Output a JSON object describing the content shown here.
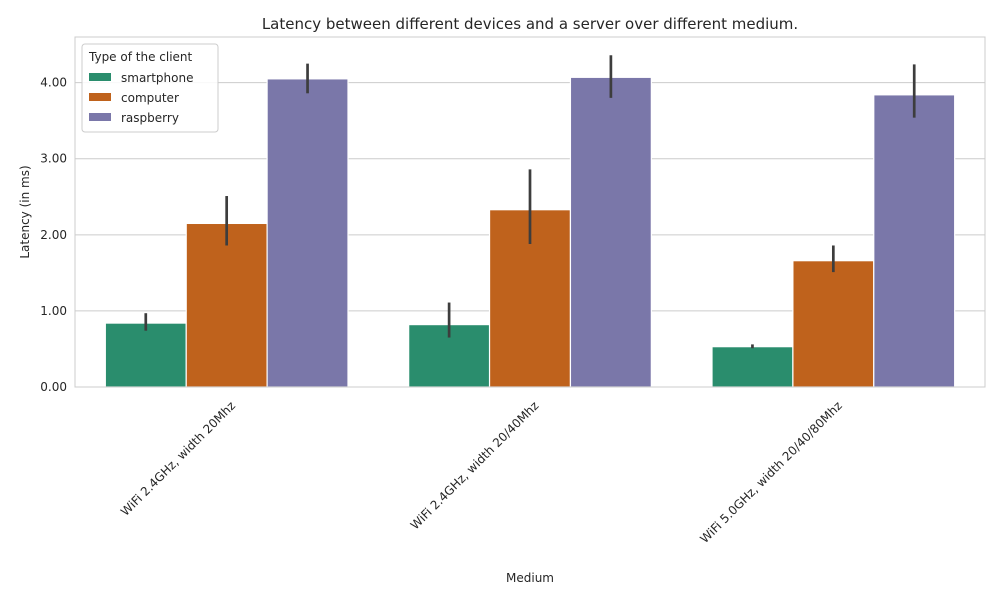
{
  "chart_data": {
    "type": "bar",
    "title": "Latency between different devices and a server over different medium.",
    "xlabel": "Medium",
    "ylabel": "Latency (in ms)",
    "categories": [
      "WiFi 2.4GHz, width 20Mhz",
      "WiFi 2.4GHz, width 20/40Mhz",
      "WiFi 5.0GHz, width 20/40/80Mhz"
    ],
    "ylim": [
      0,
      4.6
    ],
    "yticks": [
      0,
      1,
      2,
      3,
      4
    ],
    "ytick_labels": [
      "0.00",
      "1.00",
      "2.00",
      "3.00",
      "4.00"
    ],
    "grid": true,
    "legend": {
      "title": "Type of the client",
      "placement": "top-left"
    },
    "series": [
      {
        "name": "smartphone",
        "color": "#2a8d6d",
        "values": [
          0.84,
          0.82,
          0.53
        ],
        "err_low": [
          0.74,
          0.65,
          0.51
        ],
        "err_high": [
          0.97,
          1.11,
          0.56
        ]
      },
      {
        "name": "computer",
        "color": "#bf621c",
        "values": [
          2.15,
          2.33,
          1.66
        ],
        "err_low": [
          1.86,
          1.88,
          1.51
        ],
        "err_high": [
          2.51,
          2.86,
          1.86
        ]
      },
      {
        "name": "raspberry",
        "color": "#7a77a9",
        "values": [
          4.05,
          4.07,
          3.84
        ],
        "err_low": [
          3.86,
          3.8,
          3.54
        ],
        "err_high": [
          4.25,
          4.36,
          4.24
        ]
      }
    ]
  }
}
